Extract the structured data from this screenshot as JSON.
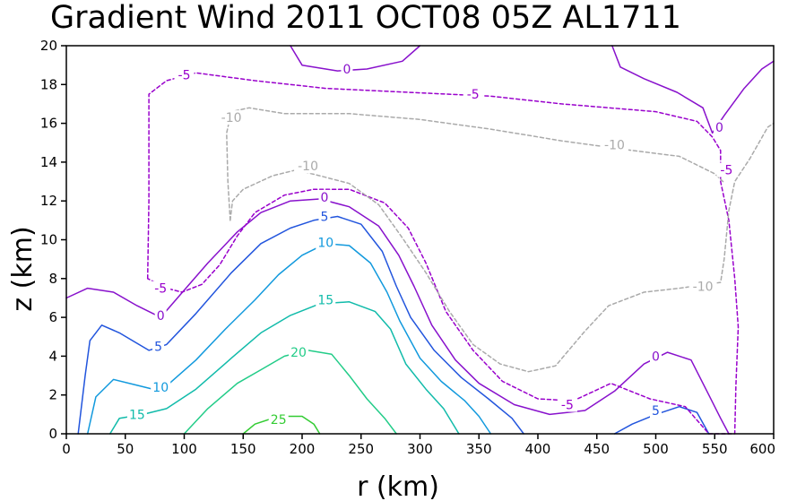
{
  "title": "Gradient Wind 2011 OCT08 05Z  AL1711",
  "chart_data": {
    "type": "contour",
    "title": "Gradient Wind 2011 OCT08 05Z  AL1711",
    "xlabel": "r (km)",
    "ylabel": "z (km)",
    "xlim": [
      0,
      600
    ],
    "ylim": [
      0,
      20
    ],
    "xticks": [
      0,
      50,
      100,
      150,
      200,
      250,
      300,
      350,
      400,
      450,
      500,
      550,
      600
    ],
    "yticks": [
      0,
      2,
      4,
      6,
      8,
      10,
      12,
      14,
      16,
      18,
      20
    ],
    "grid": false,
    "contours": [
      {
        "level": 25,
        "label": "25",
        "color": "#33cc33",
        "dashed": false,
        "points": [
          [
            150,
            0
          ],
          [
            160,
            0.5
          ],
          [
            180,
            0.9
          ],
          [
            200,
            0.9
          ],
          [
            210,
            0.5
          ],
          [
            215,
            0
          ]
        ]
      },
      {
        "level": 20,
        "label": "20",
        "color": "#22cc88",
        "dashed": false,
        "points": [
          [
            100,
            0
          ],
          [
            120,
            1.3
          ],
          [
            145,
            2.6
          ],
          [
            165,
            3.3
          ],
          [
            185,
            4.0
          ],
          [
            205,
            4.3
          ],
          [
            225,
            4.1
          ],
          [
            240,
            3.0
          ],
          [
            255,
            1.8
          ],
          [
            270,
            0.8
          ],
          [
            280,
            0
          ]
        ]
      },
      {
        "level": 15,
        "label": "15",
        "color": "#11bbaa",
        "dashed": false,
        "points": [
          [
            37,
            0
          ],
          [
            45,
            0.8
          ],
          [
            65,
            1.0
          ],
          [
            85,
            1.3
          ],
          [
            110,
            2.3
          ],
          [
            140,
            3.9
          ],
          [
            165,
            5.2
          ],
          [
            190,
            6.1
          ],
          [
            215,
            6.7
          ],
          [
            240,
            6.8
          ],
          [
            262,
            6.3
          ],
          [
            275,
            5.4
          ],
          [
            288,
            3.6
          ],
          [
            305,
            2.3
          ],
          [
            320,
            1.3
          ],
          [
            333,
            0
          ]
        ]
      },
      {
        "level": 10,
        "label": "10",
        "color": "#1199dd",
        "dashed": false,
        "points": [
          [
            18,
            0
          ],
          [
            25,
            1.9
          ],
          [
            40,
            2.8
          ],
          [
            60,
            2.5
          ],
          [
            80,
            2.2
          ],
          [
            110,
            3.8
          ],
          [
            135,
            5.4
          ],
          [
            160,
            6.9
          ],
          [
            180,
            8.2
          ],
          [
            200,
            9.2
          ],
          [
            220,
            9.8
          ],
          [
            240,
            9.7
          ],
          [
            258,
            8.8
          ],
          [
            272,
            7.3
          ],
          [
            283,
            5.8
          ],
          [
            300,
            3.9
          ],
          [
            318,
            2.7
          ],
          [
            338,
            1.7
          ],
          [
            350,
            0.9
          ],
          [
            360,
            0
          ]
        ]
      },
      {
        "level": 5,
        "label": "5",
        "color": "#2255dd",
        "dashed": false,
        "points": [
          [
            10,
            0
          ],
          [
            16,
            3.0
          ],
          [
            20,
            4.8
          ],
          [
            30,
            5.6
          ],
          [
            45,
            5.2
          ],
          [
            70,
            4.3
          ],
          [
            85,
            4.6
          ],
          [
            110,
            6.2
          ],
          [
            140,
            8.3
          ],
          [
            165,
            9.8
          ],
          [
            190,
            10.6
          ],
          [
            210,
            11.0
          ],
          [
            230,
            11.2
          ],
          [
            250,
            10.8
          ],
          [
            268,
            9.4
          ],
          [
            280,
            7.6
          ],
          [
            292,
            6.0
          ],
          [
            312,
            4.3
          ],
          [
            335,
            2.9
          ],
          [
            358,
            1.8
          ],
          [
            378,
            0.8
          ],
          [
            388,
            0
          ]
        ]
      },
      {
        "level": 5,
        "label": "5",
        "color": "#2255dd",
        "dashed": false,
        "points": [
          [
            465,
            0
          ],
          [
            480,
            0.5
          ],
          [
            500,
            1.0
          ],
          [
            520,
            1.4
          ],
          [
            535,
            1.1
          ],
          [
            545,
            0
          ]
        ]
      },
      {
        "level": 0,
        "label": "0",
        "color": "#8811cc",
        "dashed": false,
        "points": [
          [
            0,
            7.0
          ],
          [
            18,
            7.5
          ],
          [
            40,
            7.3
          ],
          [
            60,
            6.6
          ],
          [
            80,
            6.0
          ],
          [
            100,
            7.4
          ],
          [
            120,
            8.8
          ],
          [
            145,
            10.4
          ],
          [
            165,
            11.4
          ],
          [
            190,
            12.0
          ],
          [
            215,
            12.1
          ],
          [
            240,
            11.7
          ],
          [
            265,
            10.7
          ],
          [
            282,
            9.2
          ],
          [
            295,
            7.6
          ],
          [
            310,
            5.6
          ],
          [
            330,
            3.8
          ],
          [
            350,
            2.6
          ],
          [
            380,
            1.5
          ],
          [
            410,
            1.0
          ],
          [
            440,
            1.2
          ],
          [
            465,
            2.2
          ],
          [
            490,
            3.6
          ],
          [
            510,
            4.2
          ],
          [
            530,
            3.8
          ],
          [
            545,
            2.0
          ],
          [
            555,
            0.8
          ],
          [
            562,
            0
          ]
        ]
      },
      {
        "level": 0,
        "label": "0",
        "color": "#8811cc",
        "dashed": false,
        "points": [
          [
            190,
            20
          ],
          [
            200,
            19.0
          ],
          [
            230,
            18.7
          ],
          [
            255,
            18.8
          ],
          [
            285,
            19.2
          ],
          [
            300,
            20
          ]
        ]
      },
      {
        "level": 0,
        "label": "0",
        "color": "#8811cc",
        "dashed": false,
        "points": [
          [
            463,
            20
          ],
          [
            470,
            18.9
          ],
          [
            490,
            18.3
          ],
          [
            518,
            17.6
          ],
          [
            540,
            16.8
          ],
          [
            548,
            15.5
          ],
          [
            558,
            16.4
          ],
          [
            575,
            17.8
          ],
          [
            590,
            18.8
          ],
          [
            600,
            19.2
          ]
        ]
      },
      {
        "level": -5,
        "label": "-5",
        "color": "#9900cc",
        "dashed": true,
        "points": [
          [
            69,
            8.0
          ],
          [
            70,
            12.0
          ],
          [
            70,
            17.5
          ],
          [
            85,
            18.2
          ],
          [
            110,
            18.6
          ],
          [
            160,
            18.2
          ],
          [
            220,
            17.8
          ],
          [
            290,
            17.6
          ],
          [
            360,
            17.4
          ],
          [
            420,
            17.0
          ],
          [
            500,
            16.6
          ],
          [
            535,
            16.1
          ],
          [
            548,
            15.3
          ],
          [
            555,
            14.6
          ],
          [
            555,
            13.0
          ],
          [
            562,
            11.0
          ],
          [
            567,
            8.0
          ],
          [
            570,
            5.5
          ],
          [
            568,
            2.5
          ],
          [
            567,
            0
          ],
          [
            545,
            0
          ],
          [
            525,
            1.4
          ],
          [
            495,
            1.8
          ],
          [
            462,
            2.6
          ],
          [
            430,
            1.7
          ],
          [
            400,
            1.8
          ],
          [
            370,
            2.7
          ],
          [
            345,
            4.3
          ],
          [
            322,
            6.3
          ],
          [
            305,
            8.8
          ],
          [
            290,
            10.6
          ],
          [
            270,
            11.9
          ],
          [
            240,
            12.6
          ],
          [
            210,
            12.6
          ],
          [
            185,
            12.3
          ],
          [
            160,
            11.4
          ],
          [
            145,
            10.2
          ],
          [
            130,
            8.7
          ],
          [
            115,
            7.7
          ],
          [
            98,
            7.3
          ],
          [
            85,
            7.5
          ],
          [
            69,
            8.0
          ]
        ]
      },
      {
        "level": -10,
        "label": "-10",
        "color": "#aaaaaa",
        "dashed": true,
        "points": [
          [
            139,
            11.0
          ],
          [
            141,
            12.0
          ],
          [
            150,
            12.6
          ],
          [
            175,
            13.3
          ],
          [
            195,
            13.6
          ],
          [
            215,
            13.3
          ],
          [
            240,
            12.9
          ],
          [
            265,
            11.8
          ],
          [
            285,
            10.1
          ],
          [
            305,
            8.3
          ],
          [
            325,
            6.3
          ],
          [
            345,
            4.6
          ],
          [
            368,
            3.6
          ],
          [
            392,
            3.2
          ],
          [
            415,
            3.5
          ],
          [
            440,
            5.3
          ],
          [
            460,
            6.6
          ],
          [
            490,
            7.3
          ],
          [
            520,
            7.5
          ],
          [
            555,
            7.8
          ],
          [
            558,
            9.0
          ],
          [
            562,
            11.5
          ],
          [
            567,
            13.0
          ],
          [
            580,
            14.2
          ],
          [
            595,
            15.8
          ],
          [
            600,
            16.0
          ]
        ]
      },
      {
        "level": -10,
        "label": "-10",
        "color": "#aaaaaa",
        "dashed": true,
        "points": [
          [
            139,
            11.0
          ],
          [
            137,
            13.0
          ],
          [
            136,
            15.5
          ],
          [
            140,
            16.6
          ],
          [
            155,
            16.8
          ],
          [
            185,
            16.5
          ],
          [
            240,
            16.5
          ],
          [
            300,
            16.2
          ],
          [
            360,
            15.7
          ],
          [
            420,
            15.1
          ],
          [
            480,
            14.6
          ],
          [
            520,
            14.3
          ],
          [
            550,
            13.4
          ],
          [
            557,
            13.0
          ]
        ]
      }
    ],
    "contour_labels": [
      {
        "text": "25",
        "x": 180,
        "y": 0.75,
        "color": "#33cc33"
      },
      {
        "text": "20",
        "x": 197,
        "y": 4.2,
        "color": "#22cc88"
      },
      {
        "text": "15",
        "x": 60,
        "y": 1.0,
        "color": "#11bbaa"
      },
      {
        "text": "15",
        "x": 220,
        "y": 6.9,
        "color": "#11bbaa"
      },
      {
        "text": "10",
        "x": 80,
        "y": 2.4,
        "color": "#1199dd"
      },
      {
        "text": "10",
        "x": 220,
        "y": 9.85,
        "color": "#1199dd"
      },
      {
        "text": "5",
        "x": 78,
        "y": 4.5,
        "color": "#2255dd"
      },
      {
        "text": "5",
        "x": 219,
        "y": 11.2,
        "color": "#2255dd"
      },
      {
        "text": "5",
        "x": 500,
        "y": 1.2,
        "color": "#2255dd"
      },
      {
        "text": "0",
        "x": 80,
        "y": 6.1,
        "color": "#8811cc"
      },
      {
        "text": "0",
        "x": 219,
        "y": 12.2,
        "color": "#8811cc"
      },
      {
        "text": "0",
        "x": 238,
        "y": 18.8,
        "color": "#8811cc"
      },
      {
        "text": "0",
        "x": 500,
        "y": 4.0,
        "color": "#8811cc"
      },
      {
        "text": "0",
        "x": 554,
        "y": 15.8,
        "color": "#8811cc"
      },
      {
        "text": "-5",
        "x": 80,
        "y": 7.5,
        "color": "#9900cc"
      },
      {
        "text": "-5",
        "x": 100,
        "y": 18.5,
        "color": "#9900cc"
      },
      {
        "text": "-5",
        "x": 345,
        "y": 17.5,
        "color": "#9900cc"
      },
      {
        "text": "-5",
        "x": 425,
        "y": 1.5,
        "color": "#9900cc"
      },
      {
        "text": "-5",
        "x": 560,
        "y": 13.6,
        "color": "#9900cc"
      },
      {
        "text": "-10",
        "x": 140,
        "y": 16.3,
        "color": "#aaaaaa"
      },
      {
        "text": "-10",
        "x": 205,
        "y": 13.8,
        "color": "#aaaaaa"
      },
      {
        "text": "-10",
        "x": 465,
        "y": 14.9,
        "color": "#aaaaaa"
      },
      {
        "text": "-10",
        "x": 540,
        "y": 7.6,
        "color": "#aaaaaa"
      }
    ]
  }
}
